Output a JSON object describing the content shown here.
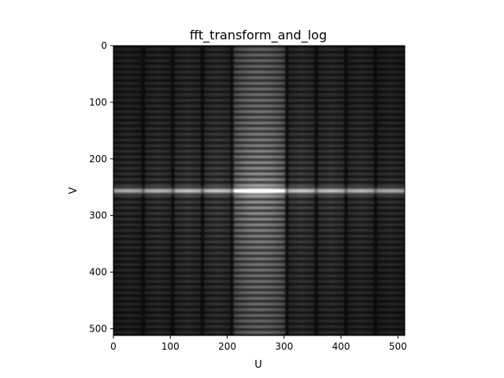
{
  "chart_data": {
    "type": "heatmap",
    "title": "fft_transform_and_log",
    "xlabel": "U",
    "ylabel": "V",
    "xlim": [
      0,
      512
    ],
    "ylim": [
      512,
      0
    ],
    "x_ticks": [
      0,
      100,
      200,
      300,
      400,
      500
    ],
    "y_ticks": [
      0,
      100,
      200,
      300,
      400,
      500
    ],
    "colormap": "gray",
    "grid": false,
    "image_size": [
      512,
      512
    ],
    "column_brightness": {
      "description_values": "relative log-magnitude per column (0 dark, 1 bright)",
      "bands": [
        {
          "u_range": [
            0,
            52
          ],
          "level": 0.22
        },
        {
          "u_range": [
            52,
            104
          ],
          "level": 0.25
        },
        {
          "u_range": [
            104,
            156
          ],
          "level": 0.28
        },
        {
          "u_range": [
            156,
            208
          ],
          "level": 0.3
        },
        {
          "u_range": [
            208,
            304
          ],
          "level": 0.62
        },
        {
          "u_range": [
            304,
            356
          ],
          "level": 0.3
        },
        {
          "u_range": [
            356,
            408
          ],
          "level": 0.28
        },
        {
          "u_range": [
            408,
            460
          ],
          "level": 0.25
        },
        {
          "u_range": [
            460,
            512
          ],
          "level": 0.22
        }
      ],
      "dark_gaps_at_u": [
        52,
        104,
        156,
        208,
        304,
        356,
        408,
        460
      ]
    },
    "row_structure": {
      "bright_row_v": 256,
      "stripe_period_v": 10
    }
  }
}
